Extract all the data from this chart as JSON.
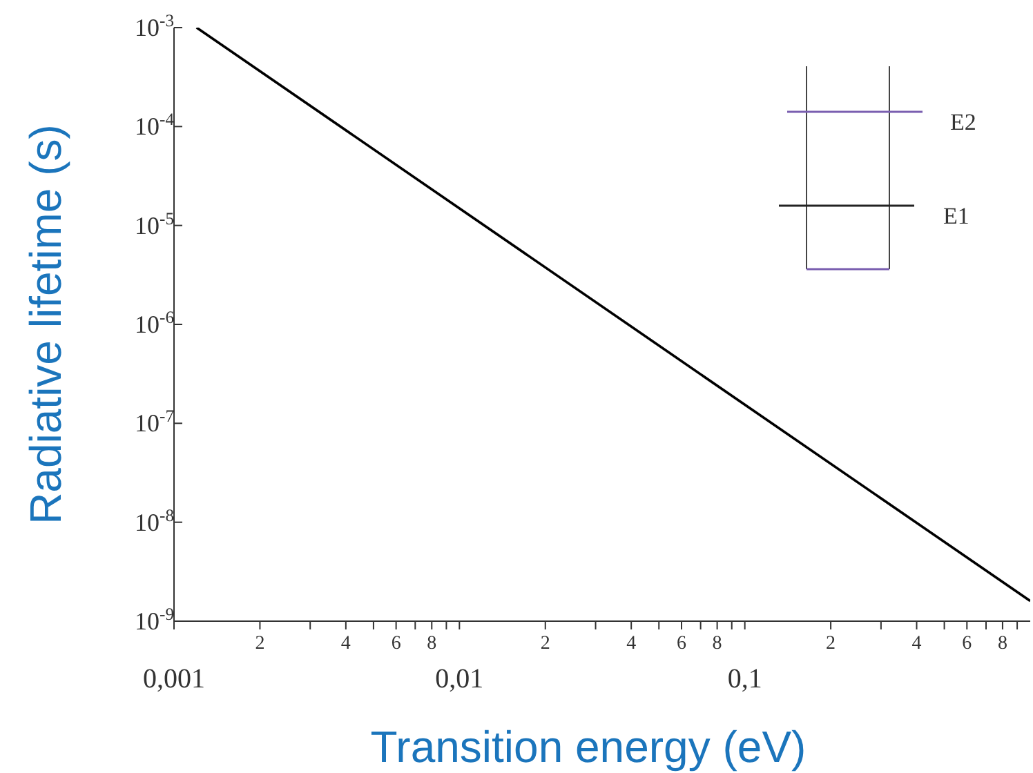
{
  "chart_data": {
    "type": "line",
    "xlabel": "Transition energy (eV)",
    "ylabel": "Radiative lifetime (s)",
    "x": [
      0.0012,
      1
    ],
    "series": [
      {
        "color": "#000000",
        "values": [
          0.001,
          1.6e-09
        ]
      }
    ],
    "log": "xy",
    "marker": "none",
    "line_style": "solid",
    "grid": false,
    "legend": false,
    "xlim": [
      0.001,
      1
    ],
    "ylim": [
      1e-09,
      0.001
    ],
    "xticks": [
      {
        "value": 0.001,
        "label": "0,001"
      },
      {
        "value": 0.002,
        "label": null
      },
      {
        "value": 0.003,
        "label": null
      },
      {
        "value": 0.004,
        "label": null
      },
      {
        "value": 0.005,
        "label": null
      },
      {
        "value": 0.006,
        "label": null
      },
      {
        "value": 0.007,
        "label": null
      },
      {
        "value": 0.008,
        "label": null
      },
      {
        "value": 0.009,
        "label": null
      },
      {
        "value": 0.01,
        "label": "0,01"
      },
      {
        "value": 0.02,
        "label": null
      },
      {
        "value": 0.03,
        "label": null
      },
      {
        "value": 0.04,
        "label": null
      },
      {
        "value": 0.05,
        "label": null
      },
      {
        "value": 0.06,
        "label": null
      },
      {
        "value": 0.07,
        "label": null
      },
      {
        "value": 0.08,
        "label": null
      },
      {
        "value": 0.09,
        "label": null
      },
      {
        "value": 0.1,
        "label": "0,1"
      },
      {
        "value": 0.2,
        "label": null
      },
      {
        "value": 0.3,
        "label": null
      },
      {
        "value": 0.4,
        "label": null
      },
      {
        "value": 0.5,
        "label": null
      },
      {
        "value": 0.6,
        "label": null
      },
      {
        "value": 0.7,
        "label": null
      },
      {
        "value": 0.8,
        "label": null
      },
      {
        "value": 0.9,
        "label": null
      }
    ],
    "yticks": [
      {
        "value": 1e-09,
        "label": "10$^{-9}$"
      },
      {
        "value": 1e-08,
        "label": "10$^{-8}$"
      },
      {
        "value": 1e-07,
        "label": "10$^{-7}$"
      },
      {
        "value": 1e-06,
        "label": "10$^{-6}$"
      },
      {
        "value": 1e-05,
        "label": "10$^{-5}$"
      },
      {
        "value": 0.0001,
        "label": "10$^{-4}$"
      },
      {
        "value": 0.001,
        "label": "10$^{-3}$"
      }
    ],
    "annotations": [
      "E2",
      "E1",
      "2",
      "4",
      "6",
      "8",
      "2",
      "4",
      "6",
      "8",
      "2",
      "4",
      "6",
      "8"
    ]
  }
}
